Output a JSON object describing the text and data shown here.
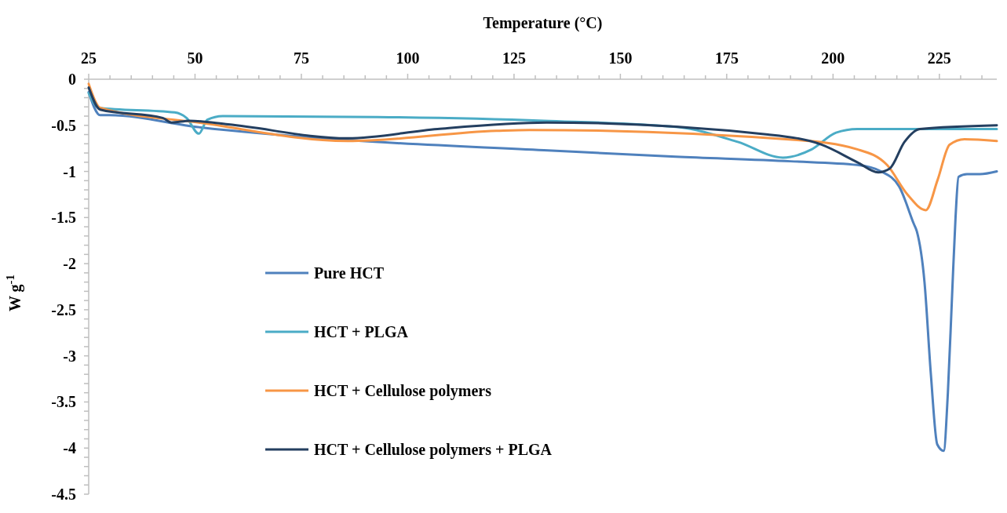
{
  "chart_data": {
    "type": "line",
    "xlabel": "Temperature (°C)",
    "ylabel": "W g$^{-1}$",
    "xlim": [
      25,
      238.5
    ],
    "ylim": [
      -4.5,
      0
    ],
    "xticks": [
      25,
      {
        "value": 30,
        "label": null
      },
      {
        "value": 35,
        "label": null
      },
      {
        "value": 40,
        "label": null
      },
      {
        "value": 45,
        "label": null
      },
      50,
      {
        "value": 55,
        "label": null
      },
      {
        "value": 60,
        "label": null
      },
      {
        "value": 65,
        "label": null
      },
      {
        "value": 70,
        "label": null
      },
      75,
      {
        "value": 80,
        "label": null
      },
      {
        "value": 85,
        "label": null
      },
      {
        "value": 90,
        "label": null
      },
      {
        "value": 95,
        "label": null
      },
      100,
      {
        "value": 105,
        "label": null
      },
      {
        "value": 110,
        "label": null
      },
      {
        "value": 115,
        "label": null
      },
      {
        "value": 120,
        "label": null
      },
      125,
      {
        "value": 130,
        "label": null
      },
      {
        "value": 135,
        "label": null
      },
      {
        "value": 140,
        "label": null
      },
      {
        "value": 145,
        "label": null
      },
      150,
      {
        "value": 155,
        "label": null
      },
      {
        "value": 160,
        "label": null
      },
      {
        "value": 165,
        "label": null
      },
      {
        "value": 170,
        "label": null
      },
      175,
      {
        "value": 180,
        "label": null
      },
      {
        "value": 185,
        "label": null
      },
      {
        "value": 190,
        "label": null
      },
      {
        "value": 195,
        "label": null
      },
      200,
      {
        "value": 205,
        "label": null
      },
      {
        "value": 210,
        "label": null
      },
      {
        "value": 215,
        "label": null
      },
      {
        "value": 220,
        "label": null
      },
      225,
      {
        "value": 230,
        "label": null
      },
      {
        "value": 235,
        "label": null
      }
    ],
    "yticks": [
      0,
      {
        "value": -0.1,
        "label": null
      },
      {
        "value": -0.2,
        "label": null
      },
      {
        "value": -0.3,
        "label": null
      },
      {
        "value": -0.4,
        "label": null
      },
      -0.5,
      {
        "value": -0.6,
        "label": null
      },
      {
        "value": -0.7,
        "label": null
      },
      {
        "value": -0.8,
        "label": null
      },
      {
        "value": -0.9,
        "label": null
      },
      -1,
      {
        "value": -1.1,
        "label": null
      },
      {
        "value": -1.2,
        "label": null
      },
      {
        "value": -1.3,
        "label": null
      },
      {
        "value": -1.4,
        "label": null
      },
      -1.5,
      {
        "value": -1.6,
        "label": null
      },
      {
        "value": -1.7,
        "label": null
      },
      {
        "value": -1.8,
        "label": null
      },
      {
        "value": -1.9,
        "label": null
      },
      -2,
      {
        "value": -2.1,
        "label": null
      },
      {
        "value": -2.2,
        "label": null
      },
      {
        "value": -2.3,
        "label": null
      },
      {
        "value": -2.4,
        "label": null
      },
      -2.5,
      {
        "value": -2.6,
        "label": null
      },
      {
        "value": -2.7,
        "label": null
      },
      {
        "value": -2.8,
        "label": null
      },
      {
        "value": -2.9,
        "label": null
      },
      -3,
      {
        "value": -3.1,
        "label": null
      },
      {
        "value": -3.2,
        "label": null
      },
      {
        "value": -3.3,
        "label": null
      },
      {
        "value": -3.4,
        "label": null
      },
      -3.5,
      {
        "value": -3.6,
        "label": null
      },
      {
        "value": -3.7,
        "label": null
      },
      {
        "value": -3.8,
        "label": null
      },
      {
        "value": -3.9,
        "label": null
      },
      -4,
      {
        "value": -4.1,
        "label": null
      },
      {
        "value": -4.2,
        "label": null
      },
      {
        "value": -4.3,
        "label": null
      },
      {
        "value": -4.4,
        "label": null
      },
      -4.5
    ],
    "grid": false,
    "legend": "bottom left",
    "marker": "none",
    "line_style": "solid",
    "series": [
      {
        "name": "Pure HCT",
        "color": "#4f81bd",
        "x": [
          25,
          27.7,
          29.8,
          50.9,
          85.9,
          132,
          163,
          190,
          205.7,
          211.3,
          215.5,
          219,
          219.7,
          221.5,
          223,
          224.5,
          226,
          227,
          228,
          228.8,
          229.5,
          231.5,
          234.5,
          238.5
        ],
        "values": [
          -0.14,
          -0.39,
          -0.39,
          -0.52,
          -0.66,
          -0.77,
          -0.84,
          -0.89,
          -0.93,
          -1.0,
          -1.16,
          -1.57,
          -1.65,
          -2.2,
          -3.2,
          -3.96,
          -4.03,
          -3.4,
          -2.33,
          -1.5,
          -1.06,
          -1.03,
          -1.03,
          -1.0
        ]
      },
      {
        "name": "HCT + PLGA",
        "color": "#4bacc6",
        "x": [
          25,
          27.4,
          45.2,
          48,
          50.9,
          52.9,
          56.5,
          92.9,
          132,
          163.6,
          177.6,
          188.2,
          195,
          200.7,
          205.7,
          238.5
        ],
        "values": [
          -0.15,
          -0.31,
          -0.36,
          -0.42,
          -0.59,
          -0.44,
          -0.4,
          -0.41,
          -0.45,
          -0.52,
          -0.68,
          -0.85,
          -0.76,
          -0.58,
          -0.54,
          -0.54
        ]
      },
      {
        "name": "HCT + Cellulose polymers",
        "color": "#f79646",
        "x": [
          25,
          27.7,
          50.9,
          85.9,
          120.9,
          128.6,
          191.6,
          205.7,
          212.7,
          217.5,
          221.8,
          224.6,
          227.4,
          230.9,
          238.5
        ],
        "values": [
          -0.05,
          -0.31,
          -0.47,
          -0.67,
          -0.56,
          -0.55,
          -0.66,
          -0.76,
          -0.93,
          -1.25,
          -1.42,
          -1.09,
          -0.71,
          -0.65,
          -0.67
        ]
      },
      {
        "name": "HCT + Cellulose polymers + PLGA",
        "color": "#243f60",
        "x": [
          25,
          27.7,
          42.4,
          44.5,
          48.7,
          57.8,
          85.9,
          107,
          132.7,
          184.7,
          197.3,
          205.7,
          210.6,
          213.3,
          216.8,
          220.4,
          238.5
        ],
        "values": [
          -0.09,
          -0.33,
          -0.42,
          -0.47,
          -0.45,
          -0.49,
          -0.64,
          -0.54,
          -0.47,
          -0.6,
          -0.71,
          -0.9,
          -1.01,
          -0.97,
          -0.68,
          -0.54,
          -0.5
        ]
      }
    ]
  }
}
